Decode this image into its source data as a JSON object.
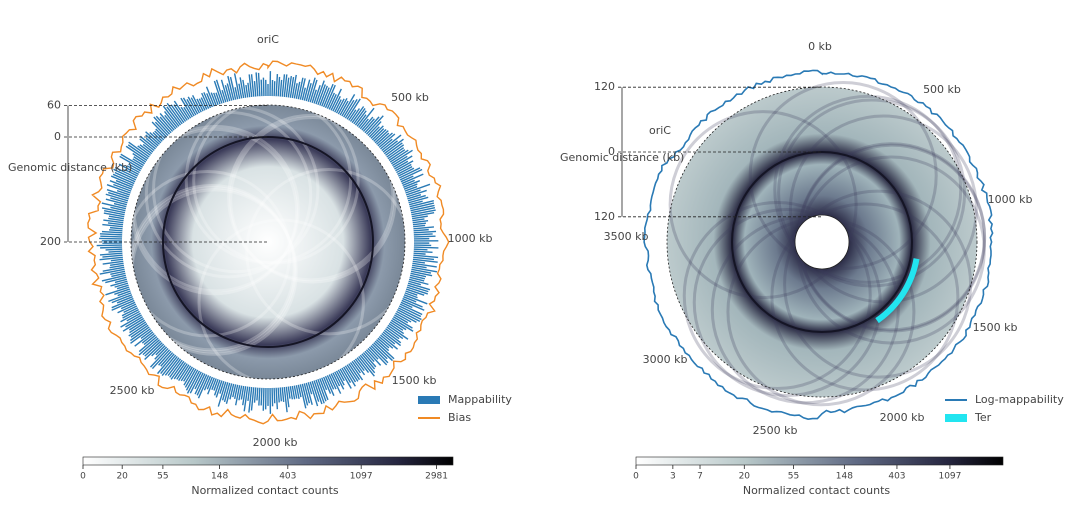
{
  "panels": [
    {
      "top_label": "oriC",
      "position_labels": [
        "500 kb",
        "1000 kb",
        "1500 kb",
        "2000 kb",
        "2500 kb"
      ],
      "distance_axis": {
        "label": "Genomic distance (kb)",
        "ticks_outward": [
          60
        ],
        "ticks_inward": [
          0,
          200
        ]
      },
      "legend": [
        "Mappability",
        "Bias"
      ],
      "colorbar": {
        "label": "Normalized contact counts",
        "scale": "log",
        "clim": [
          0,
          3700
        ],
        "ticks": [
          0,
          20,
          55,
          148,
          403,
          1097,
          2981
        ]
      }
    },
    {
      "top_label": "0 kb",
      "origin_label": "oriC",
      "position_labels": [
        "500 kb",
        "1000 kb",
        "1500 kb",
        "2000 kb",
        "2500 kb",
        "3000 kb",
        "3500 kb"
      ],
      "distance_axis": {
        "label": "Genomic distance (kb)",
        "ticks_outward": [
          120
        ],
        "ticks_inward": [
          0,
          120
        ]
      },
      "legend": [
        "Log-mappability",
        "Ter"
      ],
      "colorbar": {
        "label": "Normalized contact counts",
        "scale": "log",
        "clim": [
          0,
          2981
        ],
        "ticks": [
          0,
          3,
          7,
          20,
          55,
          148,
          403,
          1097
        ]
      }
    }
  ]
}
